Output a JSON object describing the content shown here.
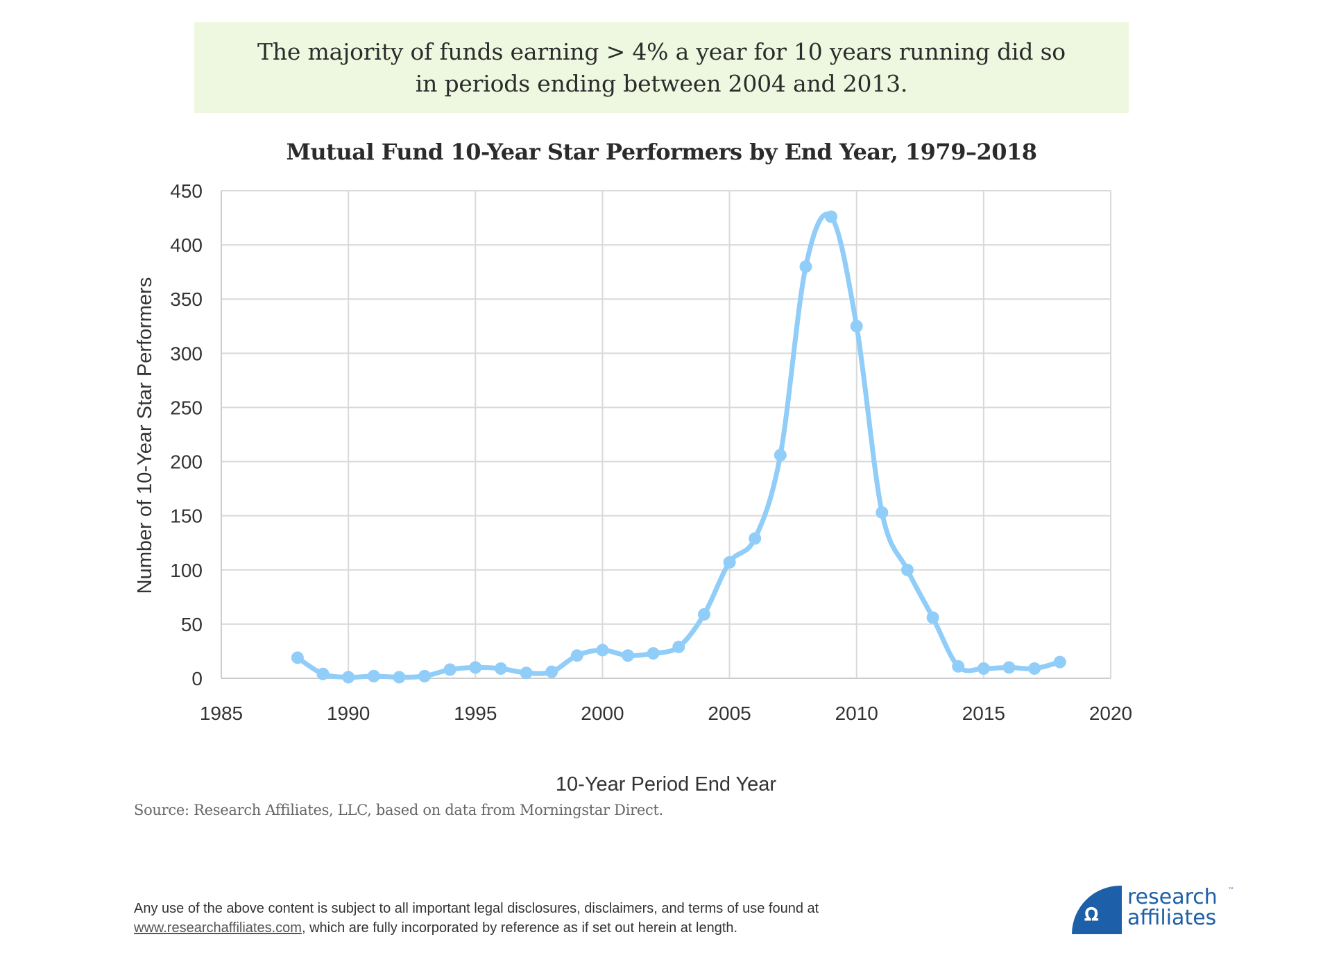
{
  "callout": {
    "line1": "The majority of funds earning > 4% a year for 10 years running did so",
    "line2": "in periods ending between 2004 and 2013."
  },
  "chart_data": {
    "type": "line",
    "title": "Mutual Fund 10-Year Star Performers by End Year, 1979–2018",
    "xlabel": "10-Year Period End Year",
    "ylabel": "Number of 10-Year Star Performers",
    "xlim": [
      1985,
      2020
    ],
    "ylim": [
      0,
      450
    ],
    "x_ticks": [
      "1985",
      "1990",
      "1995",
      "2000",
      "2005",
      "2010",
      "2015",
      "2020"
    ],
    "y_ticks": [
      "0",
      "50",
      "100",
      "150",
      "200",
      "250",
      "300",
      "350",
      "400",
      "450"
    ],
    "grid": true,
    "smooth": true,
    "markers": true,
    "legend": "none",
    "series": [
      {
        "name": "Star Performers",
        "color": "#90cdf8",
        "x": [
          1988,
          1989,
          1990,
          1991,
          1992,
          1993,
          1994,
          1995,
          1996,
          1997,
          1998,
          1999,
          2000,
          2001,
          2002,
          2003,
          2004,
          2005,
          2006,
          2007,
          2008,
          2009,
          2010,
          2011,
          2012,
          2013,
          2014,
          2015,
          2016,
          2017,
          2018
        ],
        "values": [
          19,
          4,
          1,
          2,
          1,
          2,
          8,
          10,
          9,
          5,
          6,
          21,
          26,
          21,
          23,
          29,
          59,
          107,
          129,
          206,
          380,
          426,
          325,
          153,
          100,
          56,
          11,
          9,
          10,
          9,
          15
        ]
      }
    ]
  },
  "source": "Source: Research Affiliates, LLC, based on data from Morningstar Direct.",
  "footer": {
    "line1": "Any use of the above content is subject to all important legal disclosures, disclaimers, and terms of use found at",
    "link": "www.researchaffiliates.com",
    "line2_rest": ", which are fully incorporated by reference as if set out herein at length."
  },
  "logo": {
    "word1": "research",
    "word2": "affiliates",
    "tm": "™",
    "icon": "ra-monogram-icon"
  }
}
